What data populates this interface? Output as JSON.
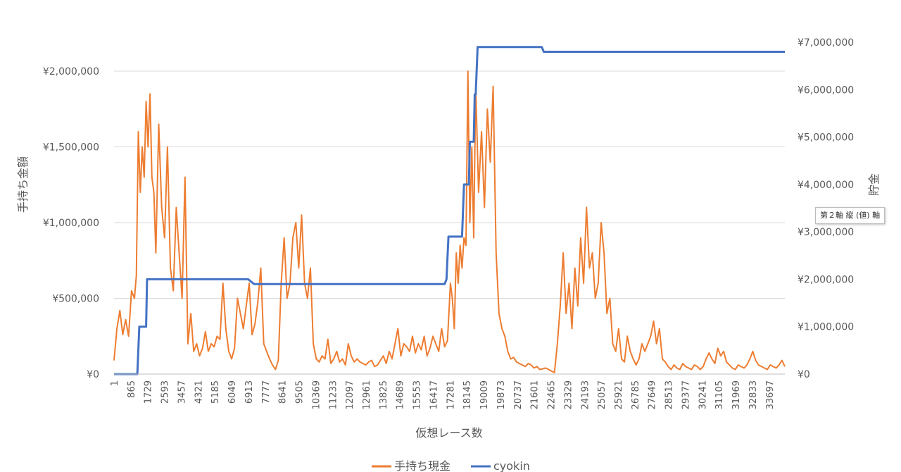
{
  "chart_data": {
    "type": "line",
    "xlabel": "仮想レース数",
    "ylabel": "手持ち金額",
    "y2label": "貯金",
    "x_ticks": [
      "1",
      "865",
      "1729",
      "2593",
      "3457",
      "4321",
      "5185",
      "6049",
      "6913",
      "7777",
      "8641",
      "9505",
      "10369",
      "11233",
      "12097",
      "12961",
      "13825",
      "14689",
      "15553",
      "16417",
      "17281",
      "18145",
      "19009",
      "19873",
      "20737",
      "21601",
      "22465",
      "23329",
      "24193",
      "25057",
      "25921",
      "26785",
      "27649",
      "28513",
      "29377",
      "30241",
      "31105",
      "31969",
      "32833",
      "33697"
    ],
    "x_range": [
      1,
      34500
    ],
    "y_ticks": [
      "¥0",
      "¥500,000",
      "¥1,000,000",
      "¥1,500,000",
      "¥2,000,000"
    ],
    "ylim": [
      0,
      2000000
    ],
    "y2_ticks": [
      "¥0",
      "¥1,000,000",
      "¥2,000,000",
      "¥3,000,000",
      "¥4,000,000",
      "¥5,000,000",
      "¥6,000,000",
      "¥7,000,000"
    ],
    "y2lim": [
      0,
      7000000
    ],
    "legend_position": "bottom",
    "grid": true,
    "series": [
      {
        "name": "手持ち現金",
        "axis": "left",
        "color": "#ED7D31",
        "x": [
          1,
          150,
          300,
          450,
          600,
          750,
          900,
          1050,
          1150,
          1250,
          1350,
          1450,
          1550,
          1650,
          1750,
          1850,
          1950,
          2050,
          2150,
          2300,
          2450,
          2600,
          2750,
          2900,
          3050,
          3200,
          3350,
          3500,
          3650,
          3800,
          3950,
          4100,
          4250,
          4400,
          4550,
          4700,
          4850,
          5000,
          5150,
          5300,
          5450,
          5600,
          5750,
          5900,
          6050,
          6200,
          6350,
          6500,
          6650,
          6800,
          6950,
          7100,
          7250,
          7400,
          7550,
          7700,
          7850,
          8000,
          8150,
          8300,
          8450,
          8600,
          8750,
          8900,
          9050,
          9200,
          9350,
          9500,
          9650,
          9800,
          9950,
          10100,
          10250,
          10400,
          10550,
          10700,
          10850,
          11000,
          11150,
          11300,
          11450,
          11600,
          11750,
          11900,
          12050,
          12200,
          12350,
          12500,
          12650,
          12800,
          12950,
          13100,
          13250,
          13400,
          13550,
          13700,
          13850,
          14000,
          14150,
          14300,
          14450,
          14600,
          14750,
          14900,
          15050,
          15200,
          15350,
          15500,
          15650,
          15800,
          15950,
          16100,
          16250,
          16400,
          16550,
          16700,
          16850,
          17000,
          17150,
          17300,
          17400,
          17500,
          17600,
          17700,
          17800,
          17900,
          18000,
          18100,
          18200,
          18300,
          18400,
          18500,
          18600,
          18750,
          18900,
          19050,
          19200,
          19350,
          19500,
          19650,
          19800,
          19950,
          20100,
          20250,
          20400,
          20550,
          20700,
          20850,
          21000,
          21150,
          21300,
          21450,
          21600,
          21750,
          21900,
          22050,
          22200,
          22350,
          22500,
          22650,
          22800,
          22950,
          23100,
          23250,
          23400,
          23550,
          23700,
          23850,
          24000,
          24150,
          24300,
          24450,
          24600,
          24750,
          24900,
          25050,
          25200,
          25350,
          25500,
          25650,
          25800,
          25950,
          26100,
          26250,
          26400,
          26550,
          26700,
          26850,
          27000,
          27150,
          27300,
          27450,
          27600,
          27750,
          27900,
          28050,
          28200,
          28350,
          28500,
          28650,
          28800,
          28950,
          29100,
          29250,
          29400,
          29550,
          29700,
          29850,
          30000,
          30150,
          30300,
          30450,
          30600,
          30750,
          30900,
          31050,
          31200,
          31350,
          31500,
          31650,
          31800,
          31950,
          32100,
          32250,
          32400,
          32550,
          32700,
          32850,
          33000,
          33150,
          33300,
          33450,
          33600,
          33750,
          33900,
          34050,
          34200,
          34350,
          34500
        ],
        "values": [
          90000,
          300000,
          420000,
          260000,
          360000,
          250000,
          550000,
          500000,
          650000,
          1600000,
          1200000,
          1500000,
          1300000,
          1800000,
          1500000,
          1850000,
          1300000,
          1200000,
          800000,
          1650000,
          1100000,
          900000,
          1500000,
          700000,
          550000,
          1100000,
          800000,
          500000,
          1300000,
          200000,
          400000,
          150000,
          200000,
          120000,
          170000,
          280000,
          150000,
          200000,
          180000,
          250000,
          230000,
          600000,
          300000,
          150000,
          100000,
          170000,
          500000,
          400000,
          300000,
          450000,
          600000,
          260000,
          330000,
          480000,
          700000,
          200000,
          150000,
          100000,
          60000,
          30000,
          90000,
          600000,
          900000,
          500000,
          600000,
          900000,
          1000000,
          700000,
          1050000,
          600000,
          500000,
          700000,
          200000,
          100000,
          80000,
          120000,
          100000,
          230000,
          70000,
          100000,
          150000,
          80000,
          100000,
          60000,
          200000,
          120000,
          80000,
          100000,
          80000,
          70000,
          60000,
          80000,
          90000,
          50000,
          60000,
          90000,
          120000,
          70000,
          150000,
          100000,
          200000,
          300000,
          120000,
          200000,
          180000,
          150000,
          250000,
          140000,
          200000,
          160000,
          250000,
          120000,
          170000,
          250000,
          200000,
          150000,
          300000,
          180000,
          220000,
          600000,
          500000,
          300000,
          800000,
          600000,
          850000,
          700000,
          900000,
          850000,
          2000000,
          1000000,
          1500000,
          900000,
          1900000,
          1200000,
          1600000,
          1100000,
          1750000,
          1400000,
          1900000,
          800000,
          400000,
          300000,
          250000,
          150000,
          100000,
          110000,
          80000,
          70000,
          60000,
          50000,
          70000,
          60000,
          40000,
          50000,
          30000,
          35000,
          40000,
          30000,
          20000,
          10000,
          200000,
          450000,
          800000,
          400000,
          600000,
          300000,
          700000,
          450000,
          900000,
          600000,
          1100000,
          700000,
          800000,
          500000,
          600000,
          1000000,
          800000,
          400000,
          500000,
          200000,
          150000,
          300000,
          100000,
          80000,
          250000,
          150000,
          100000,
          60000,
          100000,
          200000,
          150000,
          200000,
          250000,
          350000,
          200000,
          300000,
          100000,
          80000,
          50000,
          30000,
          60000,
          40000,
          30000,
          70000,
          50000,
          40000,
          30000,
          60000,
          50000,
          30000,
          50000,
          100000,
          140000,
          100000,
          70000,
          170000,
          120000,
          150000,
          80000,
          60000,
          40000,
          30000,
          60000,
          50000,
          40000,
          60000,
          100000,
          150000,
          90000,
          60000,
          50000,
          40000,
          30000,
          60000,
          50000,
          40000,
          60000,
          90000,
          50000
        ]
      },
      {
        "name": "cyokin",
        "axis": "right",
        "color": "#4472C4",
        "step": true,
        "x": [
          1,
          1200,
          1300,
          1650,
          1700,
          4800,
          6900,
          7200,
          17000,
          17100,
          17200,
          17900,
          18000,
          18250,
          18300,
          18500,
          18550,
          18600,
          18700,
          18800,
          20000,
          22000,
          22100,
          34500
        ],
        "values": [
          0,
          0,
          1000000,
          1000000,
          2000000,
          2000000,
          2000000,
          1900000,
          1900000,
          2000000,
          2900000,
          2900000,
          4000000,
          4000000,
          4900000,
          4900000,
          5900000,
          5900000,
          6900000,
          6900000,
          6900000,
          6900000,
          6800000,
          6800000
        ]
      }
    ]
  },
  "tooltip": "第２軸 縦 (値) 軸"
}
